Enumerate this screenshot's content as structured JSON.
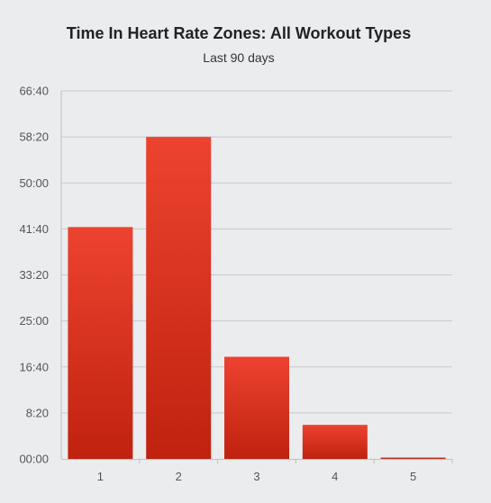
{
  "chart_data": {
    "type": "bar",
    "title": "Time In Heart Rate Zones: All Workout Types",
    "subtitle": "Last 90 days",
    "xlabel": "",
    "ylabel": "",
    "categories": [
      "1",
      "2",
      "3",
      "4",
      "5"
    ],
    "values_seconds": [
      2520,
      3500,
      1110,
      370,
      15
    ],
    "ylim_seconds": [
      0,
      4000
    ],
    "y_tick_values_seconds": [
      0,
      500,
      1000,
      1500,
      2000,
      2500,
      3000,
      3500,
      4000
    ],
    "y_tick_labels": [
      "00:00",
      "8:20",
      "16:40",
      "25:00",
      "33:20",
      "41:40",
      "50:00",
      "58:20",
      "66:40"
    ],
    "grid": true,
    "legend": "none",
    "bar_color_top": "#ec4330",
    "bar_color_bottom": "#c0220f",
    "grid_color": "#c8c9cc",
    "axis_color": "#bfc0c3"
  }
}
